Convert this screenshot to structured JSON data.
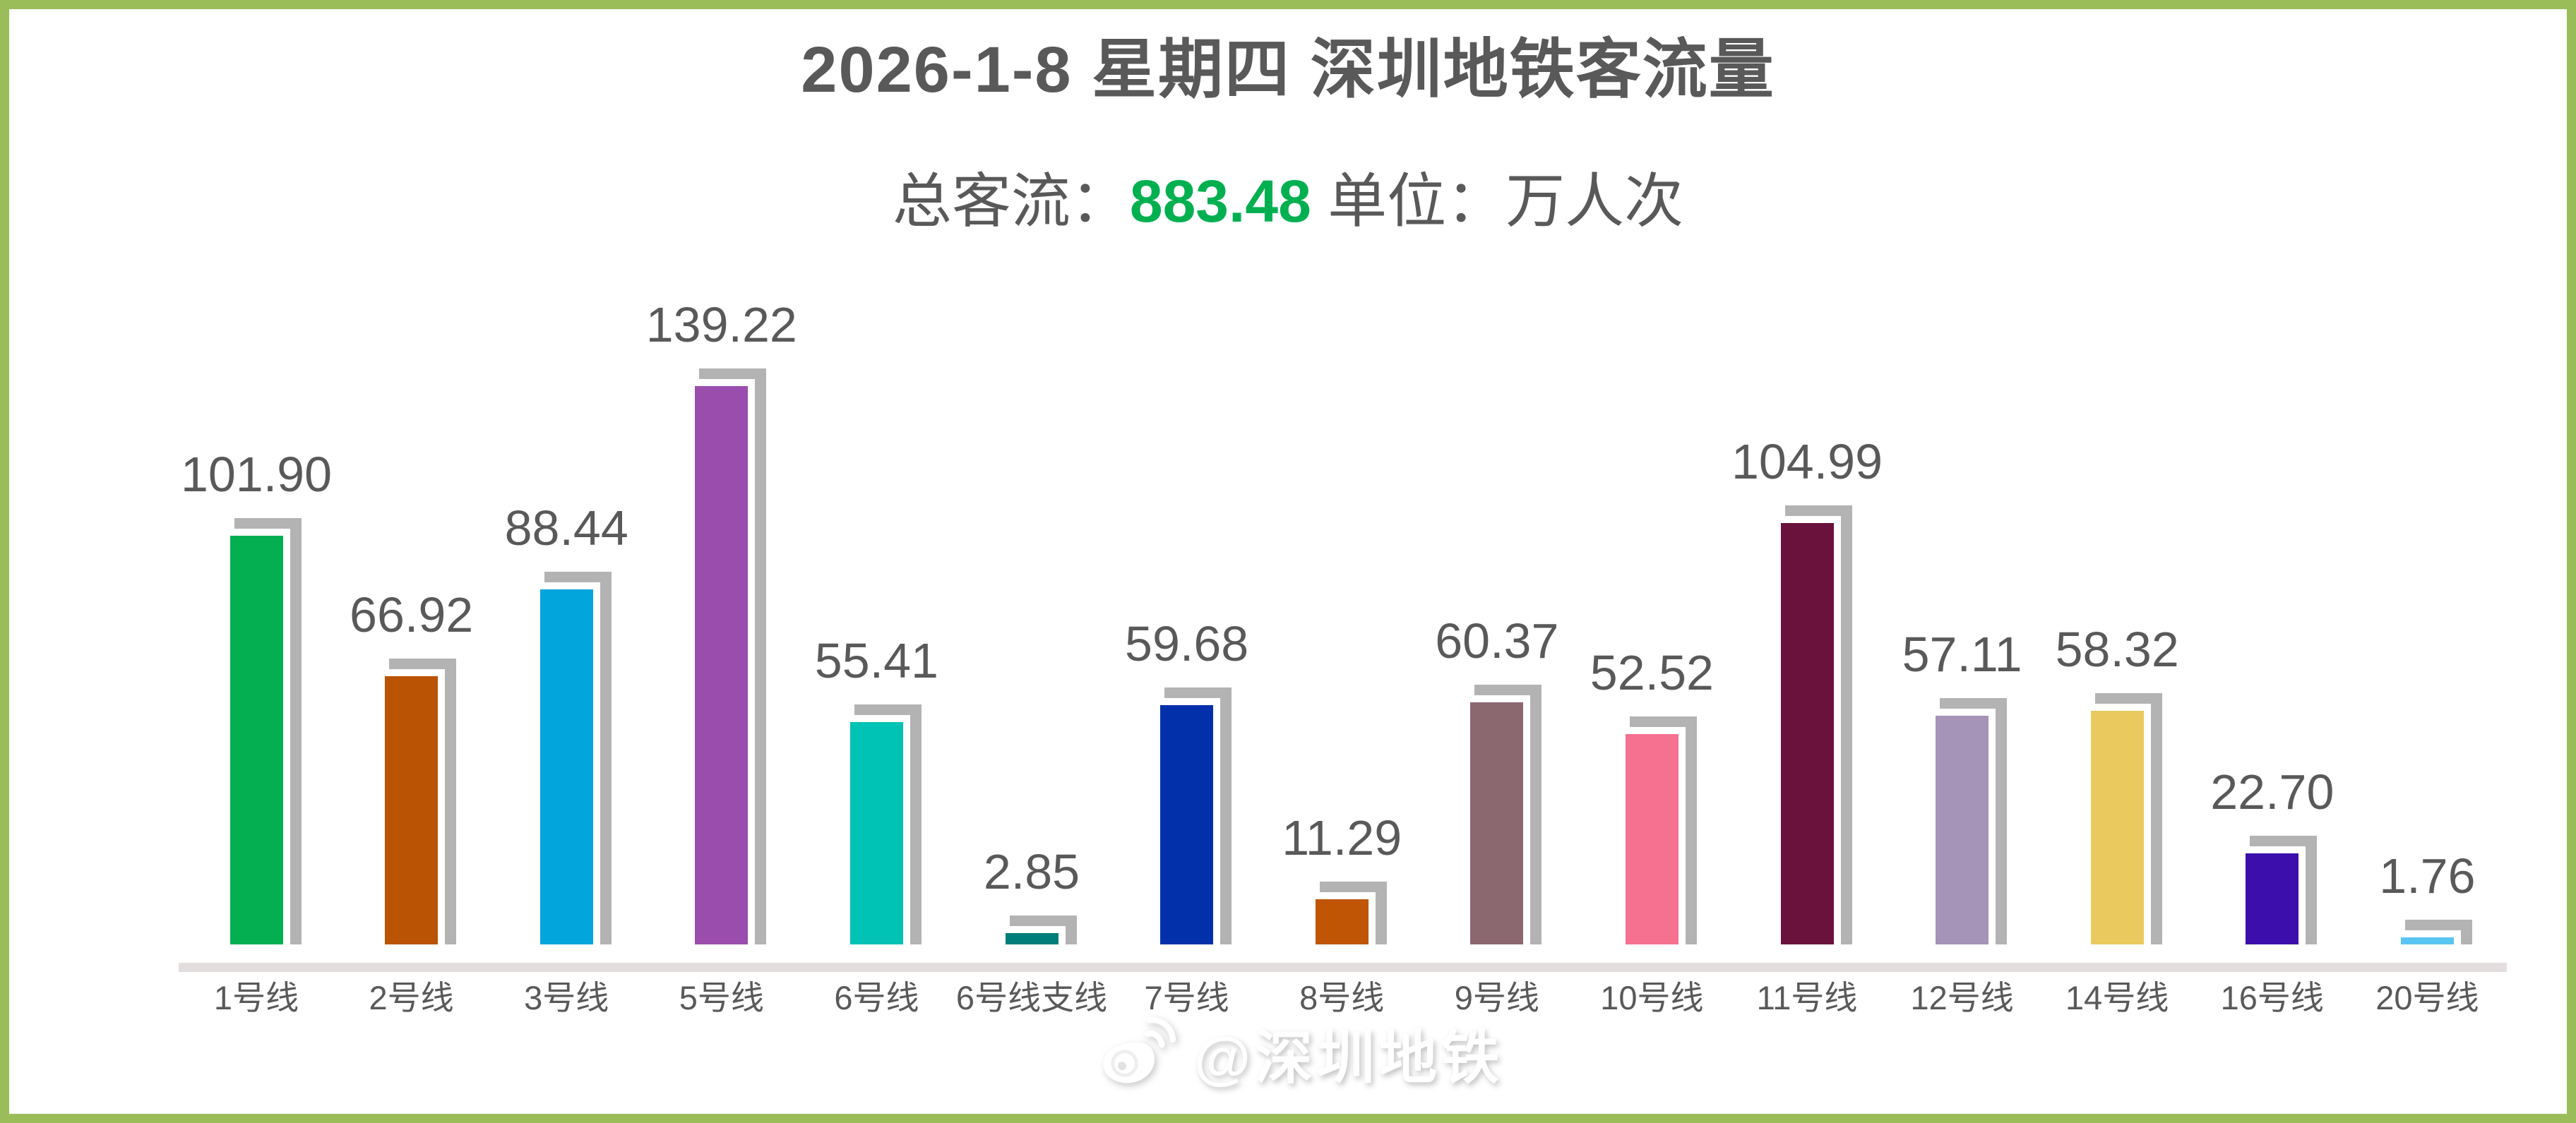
{
  "title": "2026-1-8 星期四 深圳地铁客流量",
  "subtitle": {
    "total_label": "总客流：",
    "total_value": "883.48",
    "unit_text": " 单位：万人次"
  },
  "watermark": {
    "icon": "weibo-icon",
    "text": "@深圳地铁"
  },
  "colors": {
    "frame": "#9ABC59",
    "bar_shadow": "#B3B3B3",
    "axis_band": "#E3DDDD",
    "text_gray": "#595959",
    "total_green": "#00B050"
  },
  "chart_data": {
    "type": "bar",
    "title": "2026-1-8 星期四 深圳地铁客流量",
    "subtitle_total": 883.48,
    "unit": "万人次",
    "grid": false,
    "legend": "none",
    "ylim": [
      0,
      150
    ],
    "categories": [
      "1号线",
      "2号线",
      "3号线",
      "5号线",
      "6号线",
      "6号线支线",
      "7号线",
      "8号线",
      "9号线",
      "10号线",
      "11号线",
      "12号线",
      "14号线",
      "16号线",
      "20号线"
    ],
    "values": [
      101.9,
      66.92,
      88.44,
      139.22,
      55.41,
      2.85,
      59.68,
      11.29,
      60.37,
      52.52,
      104.99,
      57.11,
      58.32,
      22.7,
      1.76
    ],
    "value_labels": [
      "101.90",
      "66.92",
      "88.44",
      "139.22",
      "55.41",
      "2.85",
      "59.68",
      "11.29",
      "60.37",
      "52.52",
      "104.99",
      "57.11",
      "58.32",
      "22.70",
      "1.76"
    ],
    "bar_colors": [
      "#04AF52",
      "#BB5304",
      "#02A5DC",
      "#9B4DAE",
      "#00C2B5",
      "#007E79",
      "#0230AB",
      "#C05506",
      "#8B6870",
      "#F5718F",
      "#6B123C",
      "#A693B8",
      "#EACA5F",
      "#3C0FAC",
      "#5BC5F2"
    ]
  }
}
